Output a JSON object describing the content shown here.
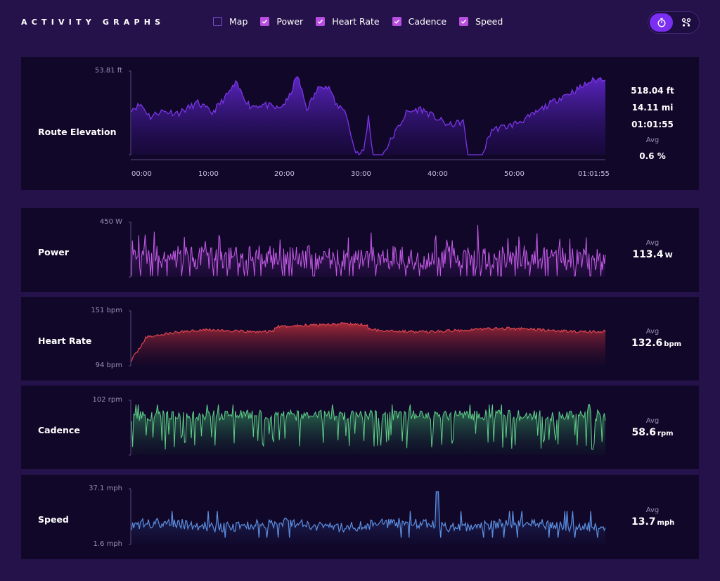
{
  "header": {
    "title": "ACTIVITY GRAPHS",
    "toggles": [
      {
        "label": "Map",
        "checked": false
      },
      {
        "label": "Power",
        "checked": true
      },
      {
        "label": "Heart Rate",
        "checked": true
      },
      {
        "label": "Cadence",
        "checked": true
      },
      {
        "label": "Speed",
        "checked": true
      }
    ],
    "mode_switch": {
      "active": "timer-icon",
      "inactive": "route-icon"
    }
  },
  "elevation": {
    "label": "Route Elevation",
    "y_max_label": "53.81 ft",
    "x_ticks": [
      "00:00",
      "10:00",
      "20:00",
      "30:00",
      "40:00",
      "50:00",
      "01:01:55"
    ],
    "stats": {
      "elevation_gain": "518.04 ft",
      "distance": "14.11 mi",
      "duration": "01:01:55",
      "grade_label": "Avg",
      "grade_value": "0.6 %"
    },
    "color": "#7a35e6"
  },
  "power": {
    "label": "Power",
    "y_max_label": "450 W",
    "y_min_label": "",
    "avg_label": "Avg",
    "avg_value": "113.4",
    "unit": "W",
    "color": "#c45be6"
  },
  "heart_rate": {
    "label": "Heart Rate",
    "y_max_label": "151 bpm",
    "y_min_label": "94 bpm",
    "avg_label": "Avg",
    "avg_value": "132.6",
    "unit": "bpm",
    "color": "#e0454f"
  },
  "cadence": {
    "label": "Cadence",
    "y_max_label": "102 rpm",
    "y_min_label": "",
    "avg_label": "Avg",
    "avg_value": "58.6",
    "unit": "rpm",
    "color": "#5fcf88"
  },
  "speed": {
    "label": "Speed",
    "y_max_label": "37.1 mph",
    "y_min_label": "1.6 mph",
    "avg_label": "Avg",
    "avg_value": "13.7",
    "unit": "mph",
    "color": "#5b8fe0"
  }
}
